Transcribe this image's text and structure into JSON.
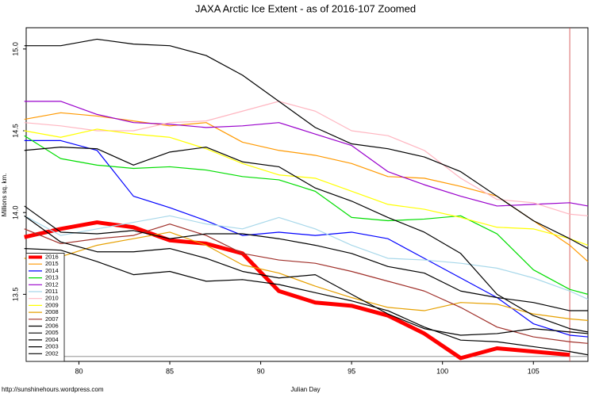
{
  "chart_data": {
    "type": "line",
    "title": "JAXA Arctic Ice Extent - as of 2016-107 Zoomed",
    "x_label": "Julian Day",
    "y_label": "Millions sq. km.",
    "source": "http://sunshinehours.wordpress.com",
    "x": [
      77,
      79,
      81,
      83,
      85,
      87,
      89,
      91,
      93,
      95,
      97,
      99,
      101,
      103,
      105,
      107,
      108
    ],
    "xlim": [
      77.1,
      108
    ],
    "ylim": [
      13.09,
      15.13
    ],
    "xticks": [
      80,
      85,
      90,
      95,
      100,
      105
    ],
    "yticks": [
      13.5,
      {
        "value": 14,
        "label": "14.0"
      },
      14.5,
      {
        "value": 15,
        "label": "15.0"
      }
    ],
    "vline": {
      "value": 107,
      "color": "#d04040"
    },
    "hline": {
      "value": 13.12,
      "color": "#808080"
    },
    "legend": "lower left",
    "series": [
      {
        "name": "2016",
        "color": "#ff0000",
        "values": [
          13.85,
          13.9,
          13.94,
          13.91,
          13.83,
          13.81,
          13.75,
          13.52,
          13.45,
          13.43,
          13.37,
          13.26,
          13.11,
          13.17,
          13.15,
          13.13,
          null
        ]
      },
      {
        "name": "2015",
        "color": "#ff9900",
        "values": [
          14.57,
          14.61,
          14.59,
          14.56,
          14.53,
          14.55,
          14.43,
          14.38,
          14.35,
          14.3,
          14.22,
          14.21,
          14.16,
          14.1,
          13.95,
          13.8,
          13.7
        ]
      },
      {
        "name": "2014",
        "color": "#0000ff",
        "values": [
          14.44,
          14.44,
          14.38,
          14.1,
          14.03,
          13.95,
          13.86,
          13.88,
          13.86,
          13.88,
          13.84,
          13.72,
          13.6,
          13.48,
          13.32,
          13.25,
          13.24
        ]
      },
      {
        "name": "2013",
        "color": "#00dd00",
        "values": [
          14.47,
          14.33,
          14.29,
          14.27,
          14.28,
          14.26,
          14.22,
          14.2,
          14.13,
          13.97,
          13.95,
          13.96,
          13.98,
          13.87,
          13.65,
          13.53,
          13.5
        ]
      },
      {
        "name": "2012",
        "color": "#9900cc",
        "values": [
          14.68,
          14.68,
          14.6,
          14.55,
          14.54,
          14.52,
          14.53,
          14.55,
          14.48,
          14.41,
          14.25,
          14.17,
          14.1,
          14.04,
          14.05,
          14.06,
          14.04
        ]
      },
      {
        "name": "2011",
        "color": "#a8d8ea",
        "values": [
          13.98,
          13.86,
          13.9,
          13.94,
          13.98,
          13.93,
          13.9,
          13.97,
          13.9,
          13.8,
          13.72,
          13.71,
          13.69,
          13.66,
          13.6,
          13.52,
          13.47
        ]
      },
      {
        "name": "2010",
        "color": "#ffb6c1",
        "values": [
          14.55,
          14.53,
          14.5,
          14.5,
          14.55,
          14.56,
          14.62,
          14.68,
          14.62,
          14.5,
          14.47,
          14.38,
          14.21,
          14.08,
          14.06,
          13.99,
          13.98
        ]
      },
      {
        "name": "2009",
        "color": "#ffff00",
        "values": [
          14.5,
          14.46,
          14.51,
          14.48,
          14.46,
          14.39,
          14.3,
          14.23,
          14.21,
          14.13,
          14.05,
          14.02,
          13.97,
          13.91,
          13.9,
          13.84,
          13.8
        ]
      },
      {
        "name": "2008",
        "color": "#e6a000",
        "values": [
          13.72,
          13.73,
          13.8,
          13.84,
          13.88,
          13.8,
          13.68,
          13.63,
          13.55,
          13.48,
          13.42,
          13.4,
          13.45,
          13.44,
          13.38,
          13.35,
          13.34
        ]
      },
      {
        "name": "2007",
        "color": "#a0302a",
        "values": [
          13.9,
          13.81,
          13.84,
          13.86,
          13.93,
          13.86,
          13.75,
          13.71,
          13.69,
          13.64,
          13.58,
          13.52,
          13.42,
          13.3,
          13.24,
          13.21,
          13.2
        ]
      },
      {
        "name": "2006",
        "color": "#000000",
        "values": [
          15.02,
          15.02,
          15.06,
          15.03,
          15.02,
          14.96,
          14.84,
          14.68,
          14.52,
          14.42,
          14.39,
          14.34,
          14.25,
          14.1,
          13.95,
          13.84,
          13.78
        ]
      },
      {
        "name": "2005",
        "color": "#000000",
        "values": [
          14.38,
          14.4,
          14.39,
          14.29,
          14.37,
          14.4,
          14.31,
          14.28,
          14.15,
          14.07,
          13.97,
          13.88,
          13.75,
          13.5,
          13.37,
          13.29,
          13.27
        ]
      },
      {
        "name": "2004",
        "color": "#000000",
        "values": [
          14.04,
          13.88,
          13.87,
          13.89,
          13.84,
          13.87,
          13.87,
          13.84,
          13.8,
          13.75,
          13.67,
          13.63,
          13.52,
          13.48,
          13.45,
          13.4,
          13.4
        ]
      },
      {
        "name": "2003",
        "color": "#000000",
        "values": [
          13.98,
          13.82,
          13.76,
          13.76,
          13.78,
          13.72,
          13.64,
          13.6,
          13.62,
          13.5,
          13.38,
          13.29,
          13.25,
          13.26,
          13.29,
          13.27,
          13.26
        ]
      },
      {
        "name": "2002",
        "color": "#000000",
        "values": [
          13.78,
          13.77,
          13.7,
          13.62,
          13.64,
          13.58,
          13.59,
          13.56,
          13.51,
          13.46,
          13.4,
          13.3,
          13.22,
          13.21,
          13.18,
          13.15,
          13.13
        ]
      }
    ]
  }
}
